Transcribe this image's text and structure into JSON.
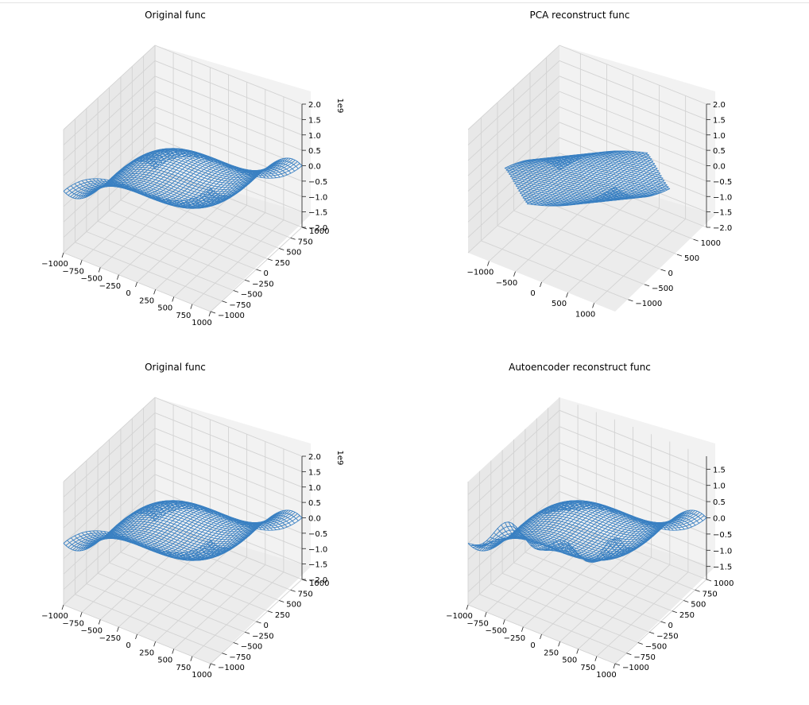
{
  "chart_data": [
    {
      "type": "surface3d",
      "title": "Original func",
      "surface": "z = x^3 - y^3",
      "x_ticks": [
        "−1000",
        "−750",
        "−500",
        "−250",
        "0",
        "250",
        "500",
        "750",
        "1000"
      ],
      "y_ticks": [
        "−1000",
        "−750",
        "−500",
        "−250",
        "0",
        "250",
        "500",
        "750",
        "1000"
      ],
      "z_ticks": [
        "−2.0",
        "−1.5",
        "−1.0",
        "−0.5",
        "0.0",
        "0.5",
        "1.0",
        "1.5",
        "2.0"
      ],
      "z_offset_label": "1e9",
      "xlim": [
        -1000,
        1000
      ],
      "ylim": [
        -1000,
        1000
      ],
      "zlim": [
        -2.0,
        2.0
      ],
      "color": "#3a80c2"
    },
    {
      "type": "surface3d",
      "title": "PCA reconstruct func",
      "surface": "rank-1 reconstruction of x^3 - y^3 (plotted on a rotated grid)",
      "x_ticks": [
        "−1000",
        "−500",
        "0",
        "500",
        "1000"
      ],
      "y_ticks": [
        "−1000",
        "−500",
        "0",
        "500",
        "1000"
      ],
      "z_ticks": [
        "−2.0",
        "−1.5",
        "−1.0",
        "−0.5",
        "0.0",
        "0.5",
        "1.0",
        "1.5",
        "2.0"
      ],
      "z_offset_label": "",
      "xlim": [
        -1400,
        1400
      ],
      "ylim": [
        -1400,
        1400
      ],
      "zlim": [
        -2.0,
        2.0
      ],
      "color": "#3a80c2"
    },
    {
      "type": "surface3d",
      "title": "Original func",
      "surface": "z = x^3 - y^3",
      "x_ticks": [
        "−1000",
        "−750",
        "−500",
        "−250",
        "0",
        "250",
        "500",
        "750",
        "1000"
      ],
      "y_ticks": [
        "−1000",
        "−750",
        "−500",
        "−250",
        "0",
        "250",
        "500",
        "750",
        "1000"
      ],
      "z_ticks": [
        "−2.0",
        "−1.5",
        "−1.0",
        "−0.5",
        "0.0",
        "0.5",
        "1.0",
        "1.5",
        "2.0"
      ],
      "z_offset_label": "1e9",
      "xlim": [
        -1000,
        1000
      ],
      "ylim": [
        -1000,
        1000
      ],
      "zlim": [
        -2.0,
        2.0
      ],
      "color": "#3a80c2"
    },
    {
      "type": "surface3d",
      "title": "Autoencoder reconstruct func",
      "surface": "approximate reconstruction of x^3 - y^3 with flattened ridge and noisy front edge",
      "x_ticks": [
        "−1000",
        "−750",
        "−500",
        "−250",
        "0",
        "250",
        "500",
        "750",
        "1000"
      ],
      "y_ticks": [
        "−1000",
        "−750",
        "−500",
        "−250",
        "0",
        "250",
        "500",
        "750",
        "1000"
      ],
      "z_ticks": [
        "−1.5",
        "−1.0",
        "−0.5",
        "0.0",
        "0.5",
        "1.0",
        "1.5"
      ],
      "z_offset_label": "",
      "xlim": [
        -1000,
        1000
      ],
      "ylim": [
        -1000,
        1000
      ],
      "zlim": [
        -1.9,
        1.9
      ],
      "color": "#3a80c2"
    }
  ]
}
